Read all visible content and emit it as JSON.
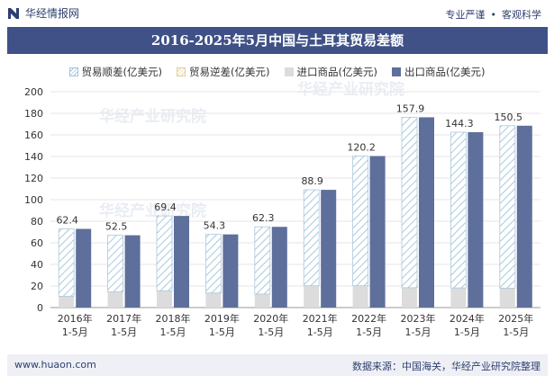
{
  "brand": {
    "name": "华经情报网",
    "icon": "huajing-logo-icon"
  },
  "slogan": {
    "left": "专业严谨",
    "separator": "•",
    "right": "客观科学"
  },
  "watermark": "华经产业研究院",
  "footer": {
    "website": "www.huaon.com",
    "source": "数据来源：中国海关，华经产业研究院整理"
  },
  "colors": {
    "surplus": "#a9c9dc",
    "deficit": "#e6d9a8",
    "import": "#dcdcdc",
    "export": "#5e6f9b",
    "title_bg": "#3f5187"
  },
  "chart_data": {
    "type": "bar",
    "title": "2016-2025年5月中国与土耳其贸易差额",
    "categories": [
      "2016年1-5月",
      "2017年1-5月",
      "2018年1-5月",
      "2019年1-5月",
      "2020年1-5月",
      "2021年1-5月",
      "2022年1-5月",
      "2023年1-5月",
      "2024年1-5月",
      "2025年1-5月"
    ],
    "series": [
      {
        "name": "贸易顺差(亿美元)",
        "values": [
          62.4,
          52.5,
          69.4,
          54.3,
          62.3,
          88.9,
          120.2,
          157.9,
          144.3,
          150.5
        ]
      },
      {
        "name": "贸易逆差(亿美元)",
        "values": [
          0,
          0,
          0,
          0,
          0,
          0,
          0,
          0,
          0,
          0
        ]
      },
      {
        "name": "进口商品(亿美元)",
        "values": [
          10.5,
          14.5,
          15.5,
          13.5,
          12.5,
          20.2,
          20.2,
          18.4,
          18.2,
          18.0
        ]
      },
      {
        "name": "出口商品(亿美元)",
        "values": [
          72.9,
          67.0,
          84.9,
          67.8,
          74.8,
          109.1,
          140.4,
          176.3,
          162.5,
          168.5
        ]
      }
    ],
    "data_labels": [
      "62.4",
      "52.5",
      "69.4",
      "54.3",
      "62.3",
      "88.9",
      "120.2",
      "157.9",
      "144.3",
      "150.5"
    ],
    "yticks": [
      "0",
      "20",
      "40",
      "60",
      "80",
      "100",
      "120",
      "140",
      "160",
      "180",
      "200"
    ],
    "ylim": [
      0,
      200
    ],
    "grid": true,
    "legend_position": "top"
  }
}
